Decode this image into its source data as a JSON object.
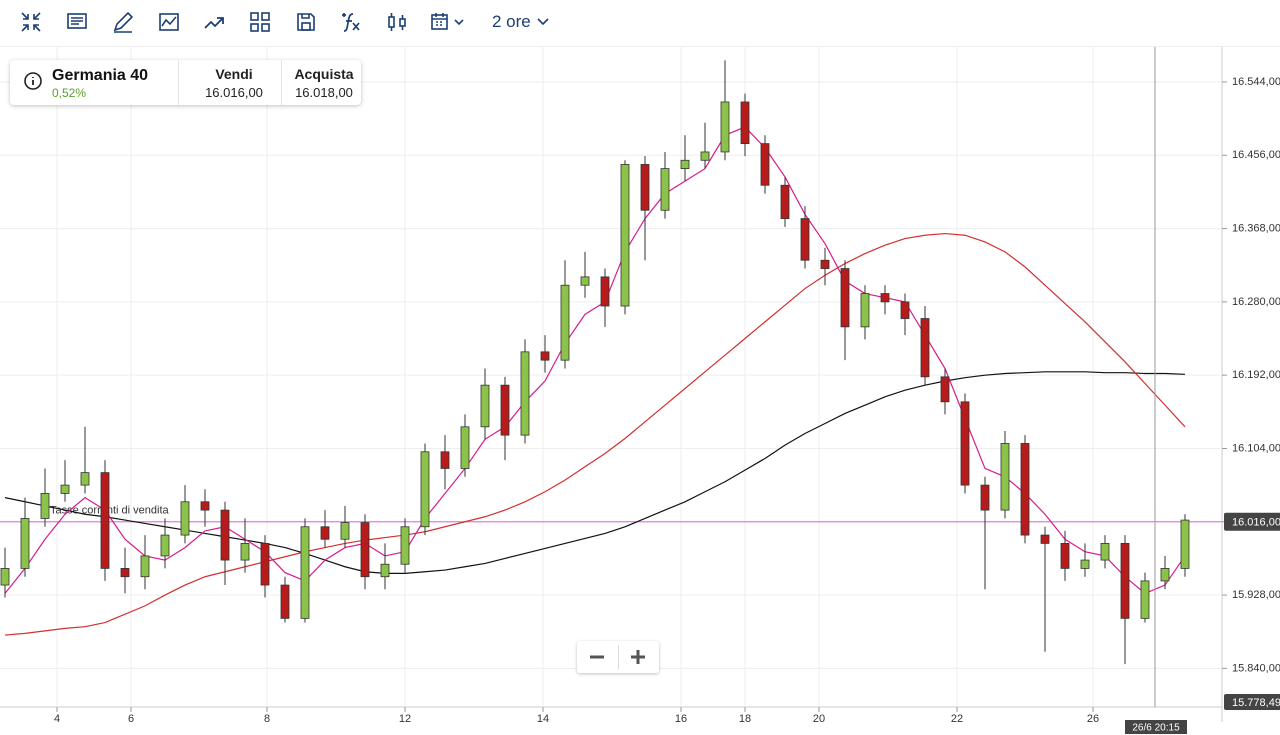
{
  "toolbar": {
    "timeframe": "2 ore"
  },
  "instrument": {
    "name": "Germania 40",
    "change": "0,52%",
    "sell_label": "Vendi",
    "sell": "16.016,00",
    "buy_label": "Acquista",
    "buy": "16.018,00"
  },
  "chart_data": {
    "type": "candlestick",
    "up_color": "#8bc34a",
    "down_color": "#b71c1c",
    "open": [
      15940,
      15960,
      16020,
      16050,
      16060,
      16075,
      15960,
      15950,
      15975,
      16000,
      16040,
      16030,
      15970,
      15990,
      15940,
      15900,
      16010,
      15995,
      16015,
      15950,
      15965,
      16010,
      16100,
      16080,
      16130,
      16180,
      16120,
      16220,
      16210,
      16300,
      16310,
      16275,
      16445,
      16390,
      16440,
      16450,
      16460,
      16520,
      16470,
      16420,
      16380,
      16330,
      16320,
      16250,
      16290,
      16280,
      16260,
      16190,
      16160,
      16060,
      16030,
      16110,
      16000,
      15990,
      15960,
      15970,
      15990,
      15900,
      15945,
      15960
    ],
    "high": [
      15985,
      16045,
      16080,
      16090,
      16130,
      16090,
      15985,
      16000,
      16020,
      16060,
      16055,
      16040,
      16020,
      16000,
      15950,
      16020,
      16030,
      16035,
      16025,
      15990,
      16020,
      16110,
      16120,
      16145,
      16200,
      16190,
      16235,
      16240,
      16330,
      16340,
      16320,
      16450,
      16455,
      16460,
      16480,
      16495,
      16570,
      16530,
      16480,
      16430,
      16395,
      16345,
      16330,
      16300,
      16300,
      16290,
      16275,
      16200,
      16170,
      16070,
      16125,
      16120,
      16010,
      16005,
      15990,
      16000,
      16000,
      15955,
      15975,
      16025
    ],
    "low": [
      15925,
      15950,
      16010,
      16040,
      16050,
      15945,
      15930,
      15935,
      15960,
      15990,
      16010,
      15940,
      15955,
      15925,
      15895,
      15895,
      15985,
      15985,
      15935,
      15935,
      15955,
      16000,
      16055,
      16070,
      16115,
      16090,
      16110,
      16195,
      16200,
      16285,
      16250,
      16265,
      16330,
      16380,
      16425,
      16440,
      16450,
      16455,
      16410,
      16370,
      16320,
      16300,
      16210,
      16235,
      16265,
      16240,
      16180,
      16145,
      16050,
      15935,
      16020,
      15990,
      15860,
      15945,
      15950,
      15960,
      15845,
      15895,
      15935,
      15950
    ],
    "close": [
      15960,
      16020,
      16050,
      16060,
      16075,
      15960,
      15950,
      15975,
      16000,
      16040,
      16030,
      15970,
      15990,
      15940,
      15900,
      16010,
      15995,
      16015,
      15950,
      15965,
      16010,
      16100,
      16080,
      16130,
      16180,
      16120,
      16220,
      16210,
      16300,
      16310,
      16275,
      16445,
      16390,
      16440,
      16450,
      16460,
      16520,
      16470,
      16420,
      16380,
      16330,
      16320,
      16250,
      16290,
      16280,
      16260,
      16190,
      16160,
      16060,
      16030,
      16110,
      16000,
      15990,
      15960,
      15970,
      15990,
      15900,
      15945,
      15960,
      16018
    ],
    "lines": [
      {
        "color": "#111111",
        "values": [
          16045,
          16040,
          16035,
          16030,
          16025,
          16022,
          16018,
          16014,
          16010,
          16006,
          16002,
          15998,
          15994,
          15990,
          15985,
          15978,
          15970,
          15962,
          15956,
          15954,
          15954,
          15956,
          15958,
          15962,
          15966,
          15972,
          15978,
          15984,
          15990,
          15996,
          16002,
          16010,
          16020,
          16030,
          16040,
          16052,
          16064,
          16078,
          16092,
          16108,
          16122,
          16134,
          16146,
          16156,
          16166,
          16174,
          16180,
          16185,
          16189,
          16192,
          16194,
          16195,
          16196,
          16196,
          16196,
          16195,
          16195,
          16194,
          16194,
          16193
        ]
      },
      {
        "color": "#d32f2f",
        "values": [
          15880,
          15882,
          15885,
          15888,
          15890,
          15895,
          15905,
          15915,
          15928,
          15940,
          15950,
          15956,
          15962,
          15968,
          15974,
          15980,
          15985,
          15990,
          15994,
          15997,
          16000,
          16004,
          16010,
          16016,
          16022,
          16030,
          16040,
          16052,
          16066,
          16082,
          16098,
          16116,
          16136,
          16156,
          16176,
          16196,
          16216,
          16236,
          16256,
          16276,
          16296,
          16312,
          16326,
          16338,
          16348,
          16356,
          16360,
          16362,
          16360,
          16352,
          16340,
          16322,
          16300,
          16278,
          16256,
          16232,
          16208,
          16182,
          16156,
          16130
        ]
      },
      {
        "color": "#d81b8c",
        "values": [
          15930,
          15960,
          15995,
          16025,
          16045,
          16030,
          15995,
          15975,
          15970,
          15985,
          16005,
          16010,
          15995,
          15980,
          15955,
          15945,
          15970,
          15985,
          15990,
          15975,
          15980,
          16020,
          16050,
          16080,
          16115,
          16130,
          16160,
          16185,
          16230,
          16265,
          16280,
          16340,
          16380,
          16410,
          16425,
          16440,
          16480,
          16490,
          16465,
          16430,
          16385,
          16350,
          16305,
          16290,
          16285,
          16280,
          16240,
          16200,
          16140,
          16080,
          16070,
          16050,
          16025,
          15995,
          15980,
          15975,
          15950,
          15930,
          15940,
          15975
        ]
      }
    ],
    "xlim": [
      -0.25,
      60.85
    ],
    "xticks": [
      {
        "value": 2.6,
        "label": "4"
      },
      {
        "value": 6.3,
        "label": "6"
      },
      {
        "value": 13.1,
        "label": "8"
      },
      {
        "value": 20,
        "label": "12"
      },
      {
        "value": 26.9,
        "label": "14"
      },
      {
        "value": 33.8,
        "label": "16"
      },
      {
        "value": 37,
        "label": "18"
      },
      {
        "value": 40.7,
        "label": "20"
      },
      {
        "value": 47.6,
        "label": "22"
      },
      {
        "value": 54.4,
        "label": "26"
      }
    ],
    "ylim": [
      15796,
      16586
    ],
    "yticks": [
      {
        "value": 15840,
        "label": "15.840,00"
      },
      {
        "value": 15928,
        "label": "15.928,00"
      },
      {
        "value": 16016,
        "label": "16.016,00"
      },
      {
        "value": 16104,
        "label": "16.104,00"
      },
      {
        "value": 16192,
        "label": "16.192,00"
      },
      {
        "value": 16280,
        "label": "16.280,00"
      },
      {
        "value": 16368,
        "label": "16.368,00"
      },
      {
        "value": 16456,
        "label": "16.456,00"
      },
      {
        "value": 16544,
        "label": "16.544,00"
      }
    ],
    "grid": true,
    "price_line": {
      "value": 16016,
      "label": "16.016,00",
      "text": "Tasse correnti di vendita",
      "color": "#e27fe0"
    },
    "crosshair": {
      "x": 57.5,
      "label": "26/6 20:15",
      "y_label": "15.778,49"
    }
  }
}
